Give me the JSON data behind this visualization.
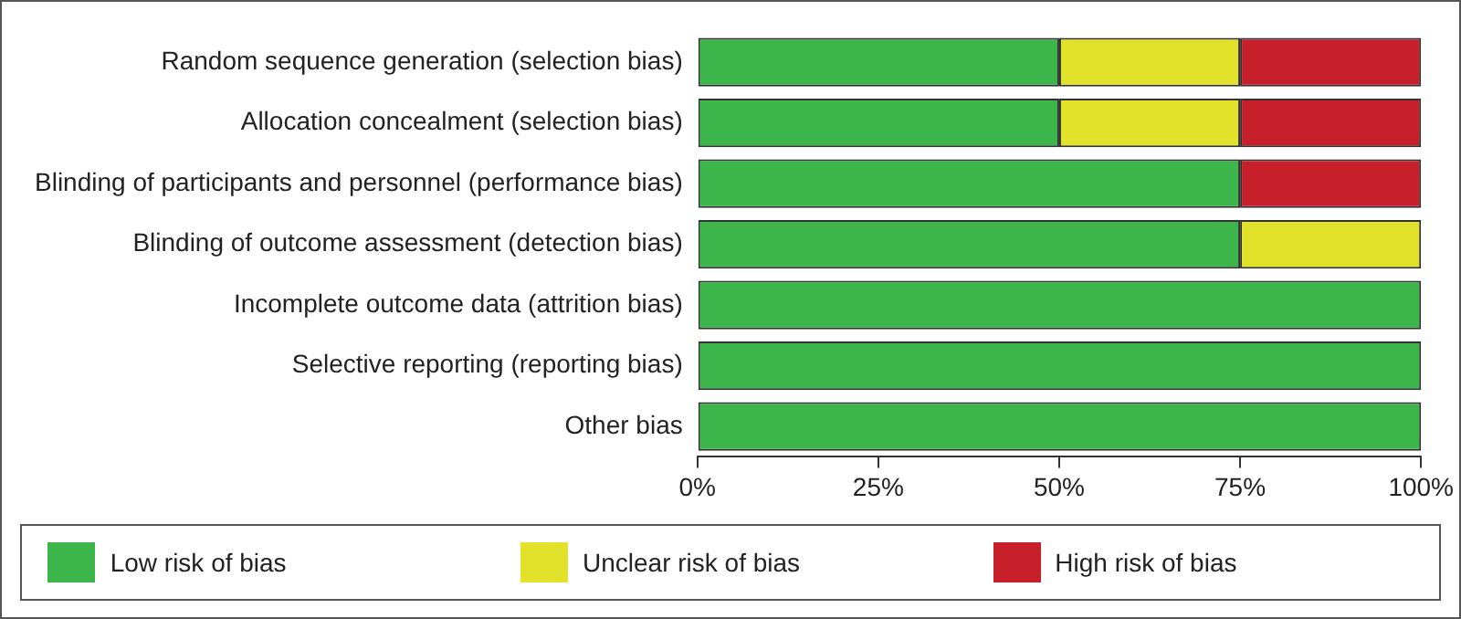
{
  "chart_data": {
    "type": "bar",
    "orientation": "horizontal",
    "stacked": true,
    "categories": [
      "Random sequence generation (selection bias)",
      "Allocation concealment (selection bias)",
      "Blinding of participants and personnel (performance bias)",
      "Blinding of outcome assessment (detection bias)",
      "Incomplete outcome data (attrition bias)",
      "Selective reporting (reporting bias)",
      "Other bias"
    ],
    "series": [
      {
        "name": "Low risk of bias",
        "color": "#3cb54a",
        "values": [
          50,
          50,
          75,
          75,
          100,
          100,
          100
        ]
      },
      {
        "name": "Unclear risk of bias",
        "color": "#e2e22a",
        "values": [
          25,
          25,
          0,
          25,
          0,
          0,
          0
        ]
      },
      {
        "name": "High risk of bias",
        "color": "#c8202b",
        "values": [
          25,
          25,
          25,
          0,
          0,
          0,
          0
        ]
      }
    ],
    "xlim": [
      0,
      100
    ],
    "xticks": [
      {
        "value": 0,
        "label": "0%"
      },
      {
        "value": 25,
        "label": "25%"
      },
      {
        "value": 50,
        "label": "50%"
      },
      {
        "value": 75,
        "label": "75%"
      },
      {
        "value": 100,
        "label": "100%"
      }
    ],
    "grid": false,
    "legend": "bottom"
  }
}
